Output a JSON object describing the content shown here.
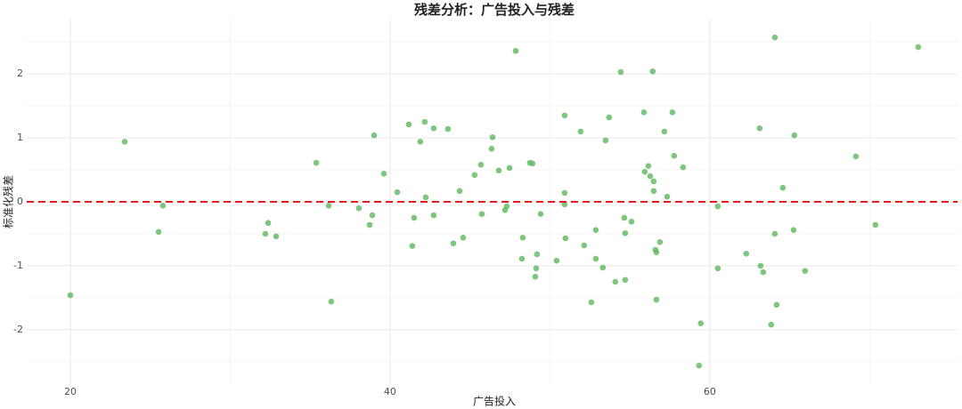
{
  "chart_data": {
    "type": "scatter",
    "title": "残差分析：广告投入与残差",
    "x_label": "广告投入",
    "y_label": "标准化残差",
    "color": "#5cb85c",
    "x": [
      20.0,
      23.4,
      25.52,
      25.79,
      32.2,
      32.37,
      32.87,
      35.38,
      36.16,
      36.32,
      38.05,
      38.72,
      38.89,
      39.0,
      39.61,
      40.45,
      41.17,
      41.39,
      41.5,
      41.89,
      42.17,
      42.23,
      42.73,
      42.73,
      43.62,
      43.96,
      44.35,
      44.57,
      45.29,
      45.68,
      45.74,
      46.35,
      46.41,
      46.8,
      47.19,
      47.3,
      47.47,
      47.86,
      48.3,
      48.25,
      48.75,
      48.91,
      49.08,
      49.14,
      49.19,
      49.42,
      50.42,
      50.92,
      50.92,
      50.92,
      50.97,
      51.92,
      52.14,
      52.59,
      52.87,
      52.87,
      53.31,
      53.48,
      53.7,
      54.09,
      54.43,
      54.65,
      54.71,
      54.71,
      55.1,
      55.88,
      55.93,
      56.16,
      56.27,
      56.43,
      56.49,
      56.49,
      56.6,
      56.66,
      56.66,
      56.88,
      57.16,
      57.33,
      57.66,
      57.77,
      58.33,
      59.33,
      59.44,
      60.5,
      60.5,
      62.28,
      63.12,
      63.18,
      63.34,
      63.84,
      64.07,
      64.07,
      64.18,
      64.57,
      65.24,
      65.29,
      65.96,
      69.14,
      70.36,
      73.04
    ],
    "values": [
      -1.46,
      0.94,
      -0.47,
      -0.06,
      -0.5,
      -0.33,
      -0.54,
      0.61,
      -0.06,
      -1.56,
      -0.1,
      -0.36,
      -0.21,
      1.04,
      0.44,
      0.15,
      1.21,
      -0.69,
      -0.25,
      0.94,
      1.25,
      0.07,
      1.15,
      -0.21,
      1.14,
      -0.65,
      0.17,
      -0.56,
      0.42,
      0.58,
      -0.19,
      0.83,
      1.01,
      0.49,
      -0.13,
      -0.07,
      0.53,
      2.36,
      -0.56,
      -0.89,
      0.61,
      0.6,
      -1.17,
      -1.04,
      -0.82,
      -0.19,
      -0.92,
      1.35,
      -0.04,
      0.14,
      -0.57,
      1.1,
      -0.68,
      -1.57,
      -0.44,
      -0.89,
      -1.03,
      0.96,
      1.32,
      -1.25,
      2.03,
      -0.25,
      -0.49,
      -1.22,
      -0.31,
      1.4,
      0.47,
      0.56,
      0.4,
      2.04,
      0.32,
      0.17,
      -0.75,
      -0.79,
      -1.53,
      -0.63,
      1.1,
      0.08,
      1.4,
      0.72,
      0.54,
      -2.56,
      -1.9,
      -0.07,
      -1.04,
      -0.81,
      1.15,
      -1.0,
      -1.1,
      -1.92,
      -0.5,
      2.57,
      -1.61,
      0.22,
      -0.44,
      1.04,
      -1.08,
      0.71,
      -0.36,
      2.42
    ],
    "xlim": [
      17.27,
      75.5
    ],
    "xticks": [
      20,
      40,
      60
    ],
    "ylim": [
      -2.85,
      2.85
    ],
    "yticks": [
      -2,
      -1,
      0,
      1,
      2
    ],
    "grid": true,
    "reference_line": {
      "value": 0,
      "color": "#e41a1c"
    }
  }
}
